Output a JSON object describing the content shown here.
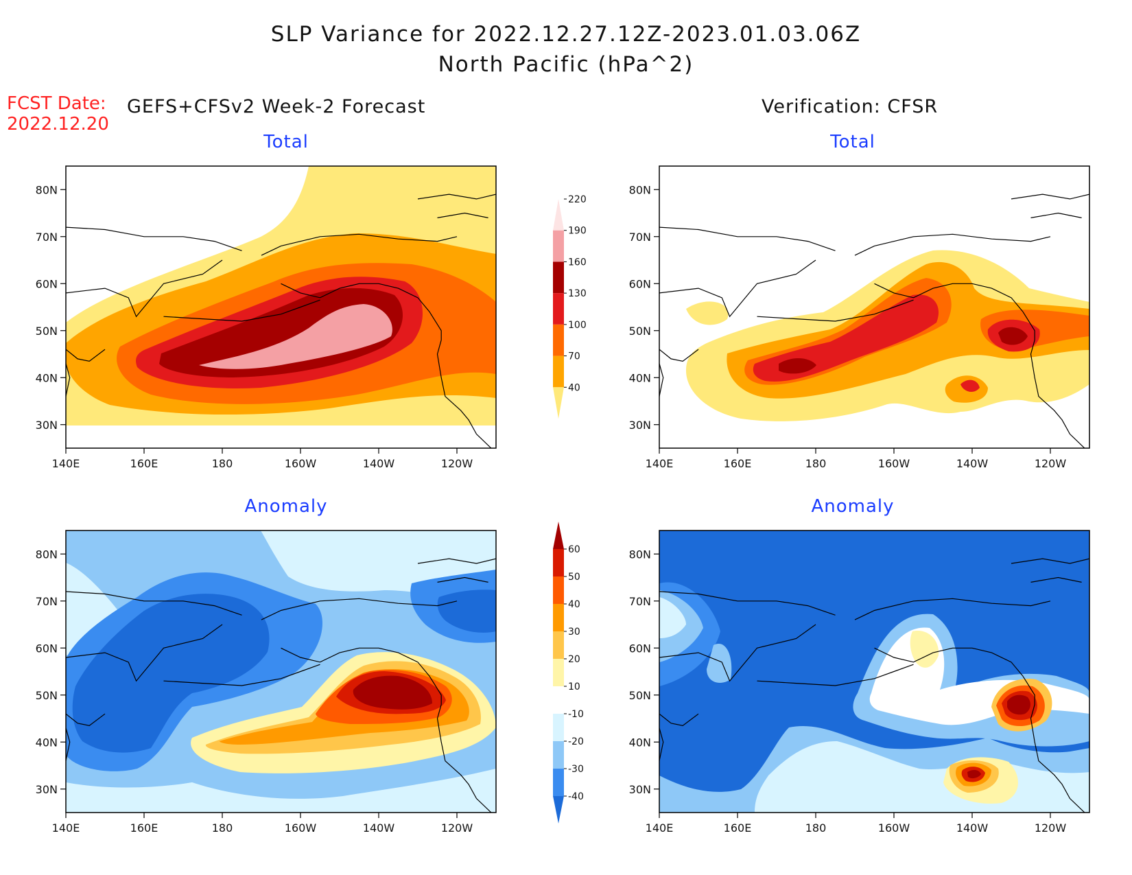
{
  "title": {
    "line1": "SLP Variance for 2022.12.27.12Z-2023.01.03.06Z",
    "line2": "North Pacific (hPa^2)"
  },
  "fcst": {
    "label": "FCST Date:",
    "date": "2022.12.20"
  },
  "headers": {
    "forecast": "GEFS+CFSv2 Week-2 Forecast",
    "verification": "Verification: CFSR"
  },
  "panels": [
    {
      "id": "fc-total",
      "title": "Total"
    },
    {
      "id": "ver-total",
      "title": "Total"
    },
    {
      "id": "fc-anom",
      "title": "Anomaly"
    },
    {
      "id": "ver-anom",
      "title": "Anomaly"
    }
  ],
  "axes": {
    "x_ticks": [
      "140E",
      "160E",
      "180",
      "160W",
      "140W",
      "120W"
    ],
    "y_ticks": [
      "30N",
      "40N",
      "50N",
      "60N",
      "70N",
      "80N"
    ],
    "lon_range": [
      140,
      250
    ],
    "lat_range": [
      25,
      85
    ]
  },
  "colorbars": {
    "total": {
      "levels": [
        "40",
        "70",
        "100",
        "130",
        "160",
        "190",
        "220"
      ],
      "colors": [
        "#ffe97a",
        "#ffa500",
        "#ff6a00",
        "#e31a1c",
        "#a50000",
        "#f4a0a4",
        "#fde4e4"
      ]
    },
    "anomaly": {
      "levels": [
        "-40",
        "-30",
        "-20",
        "-10",
        "10",
        "20",
        "30",
        "40",
        "50",
        "60"
      ],
      "colors": [
        "#1c6bd8",
        "#3a8cf0",
        "#8ec8f7",
        "#d8f4ff",
        "#ffffff",
        "#fff5a8",
        "#ffc64a",
        "#ff9a00",
        "#ff5a00",
        "#d91a00",
        "#a30000"
      ]
    }
  }
}
